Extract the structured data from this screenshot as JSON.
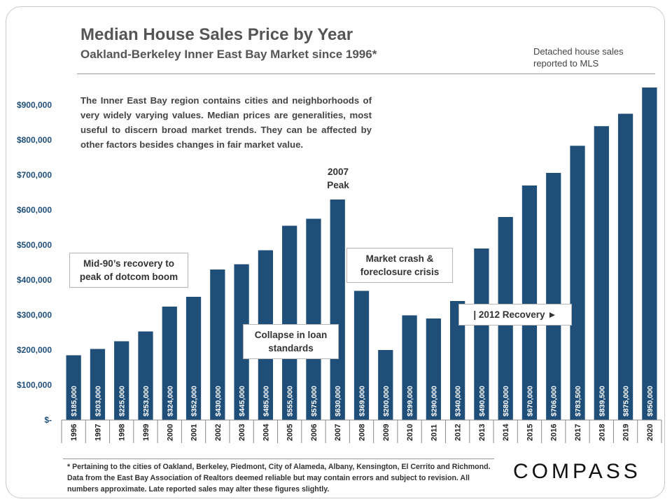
{
  "header": {
    "title": "Median House Sales Price by Year",
    "subtitle": "Oakland-Berkeley  Inner East Bay Market  since 1996*",
    "source_note": "Detached house sales reported to MLS"
  },
  "intro_text": "The Inner East Bay region contains cities and neighborhoods of very widely varying values. Median prices are generalities, most useful to discern broad market trends. They can be affected by other factors besides changes in fair market value.",
  "callouts": {
    "dotcom": "Mid-90’s recovery to peak of dotcom boom",
    "loan": "Collapse in loan standards",
    "peak": "2007 Peak",
    "crash": "Market crash & foreclosure crisis",
    "recovery": "| 2012 Recovery ►"
  },
  "footnote": "* Pertaining to the cities of Oakland, Berkeley, Piedmont, City of Alameda, Albany, Kensington, El Cerrito and Richmond. Data from the East Bay Association of Realtors deemed reliable but may contain errors and subject to revision. All numbers approximate. Late reported sales may alter these figures slightly.",
  "logo": "COMPASS",
  "chart_data": {
    "type": "bar",
    "title": "Median House Sales Price by Year",
    "categories": [
      "1996",
      "1997",
      "1998",
      "1999",
      "2000",
      "2001",
      "2002",
      "2003",
      "2004",
      "2005",
      "2006",
      "2007",
      "2008",
      "2009",
      "2010",
      "2011",
      "2012",
      "2013",
      "2014",
      "2015",
      "2016",
      "2017",
      "2018",
      "2019",
      "2020"
    ],
    "values": [
      185000,
      203000,
      225000,
      253000,
      324000,
      352000,
      430000,
      445000,
      485000,
      555000,
      575000,
      630000,
      369000,
      200000,
      299000,
      290000,
      340000,
      490000,
      580000,
      670000,
      706000,
      783500,
      839500,
      875000,
      950000
    ],
    "data_labels": [
      "$185,000",
      "$203,000",
      "$225,000",
      "$253,000",
      "$324,000",
      "$352,000",
      "$430,000",
      "$445,000",
      "$485,000",
      "$555,000",
      "$575,000",
      "$630,000",
      "$369,000",
      "$200,000",
      "$299,000",
      "$290,000",
      "$340,000",
      "$490,000",
      "$580,000",
      "$670,000",
      "$706,000",
      "$783,500",
      "$839,500",
      "$875,000",
      "$950,000"
    ],
    "yticks": [
      0,
      100000,
      200000,
      300000,
      400000,
      500000,
      600000,
      700000,
      800000,
      900000
    ],
    "ytick_labels": [
      "$-",
      "$100,000",
      "$200,000",
      "$300,000",
      "$400,000",
      "$500,000",
      "$600,000",
      "$700,000",
      "$800,000",
      "$900,000"
    ],
    "ylim": [
      0,
      960000
    ],
    "grid": false,
    "bar_color": "#1f4e79",
    "label_color": "#ffffff",
    "axis_label_color": "#1f4e79"
  }
}
